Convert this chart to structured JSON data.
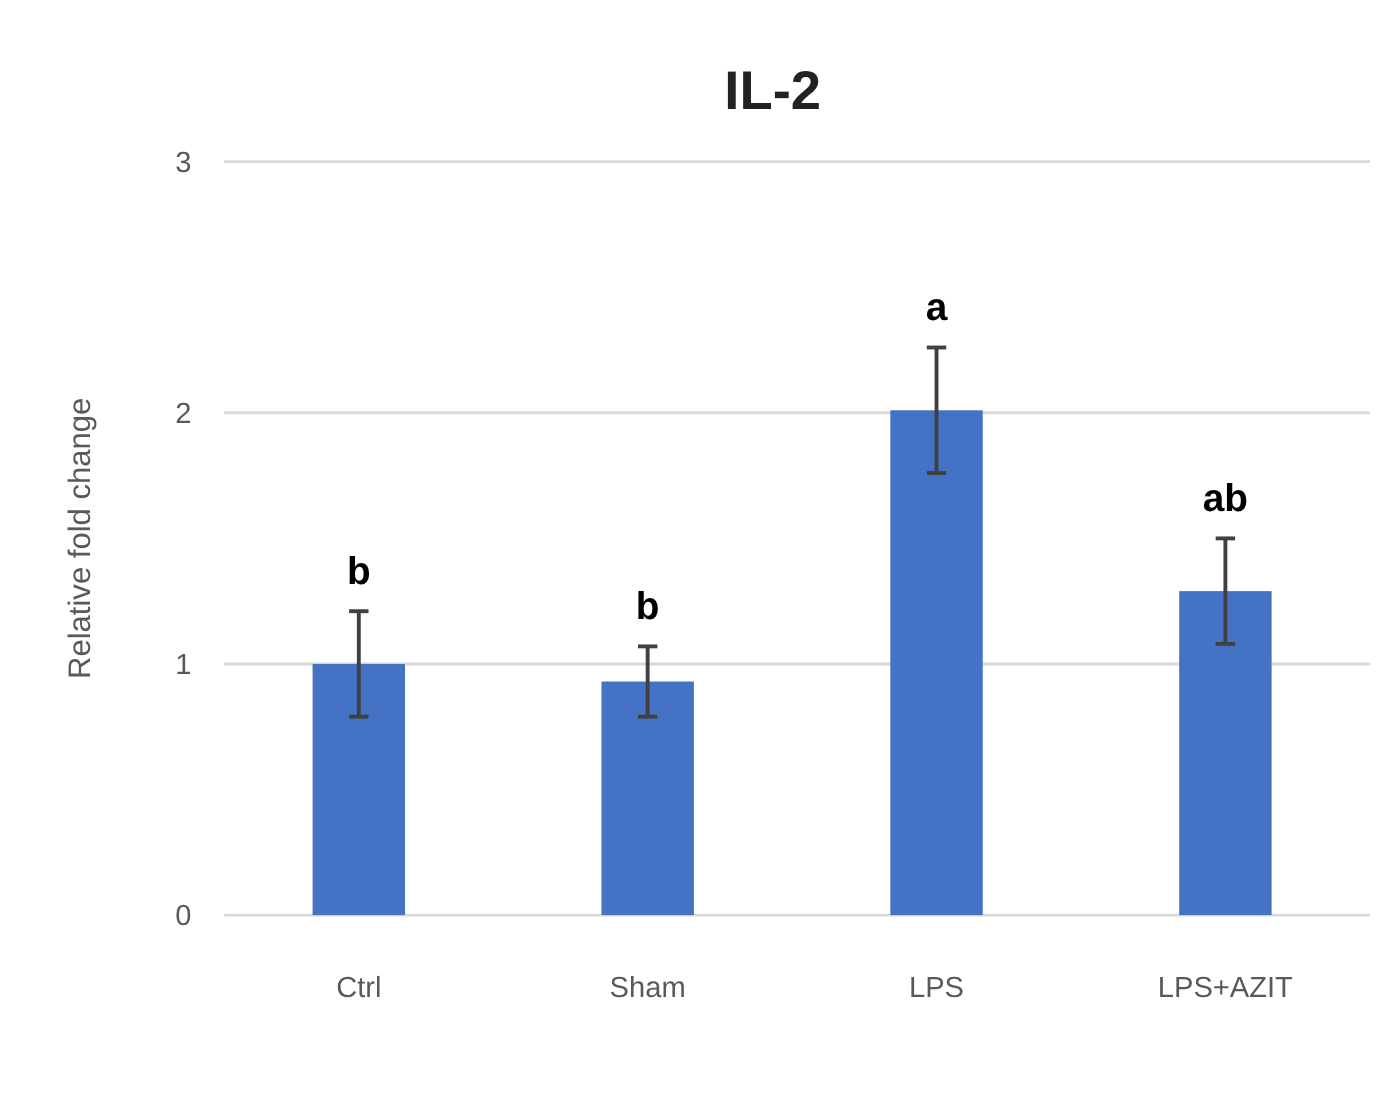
{
  "chart_data": {
    "type": "bar",
    "title": "IL-2",
    "ylabel": "Relative fold change",
    "categories": [
      "Ctrl",
      "Sham",
      "LPS",
      "LPS+AZIT"
    ],
    "values": [
      1.0,
      0.93,
      2.01,
      1.29
    ],
    "errors": [
      0.21,
      0.14,
      0.25,
      0.21
    ],
    "color": "#4472c4",
    "ylim": [
      0,
      3
    ],
    "yticks": [
      0,
      1,
      2,
      3
    ],
    "grid": "y",
    "annotations": [
      {
        "text": "b",
        "x": "Ctrl",
        "y": 1.21
      },
      {
        "text": "b",
        "x": "Sham",
        "y": 1.07
      },
      {
        "text": "a",
        "x": "LPS",
        "y": 2.26
      },
      {
        "text": "ab",
        "x": "LPS+AZIT",
        "y": 1.5
      }
    ]
  }
}
